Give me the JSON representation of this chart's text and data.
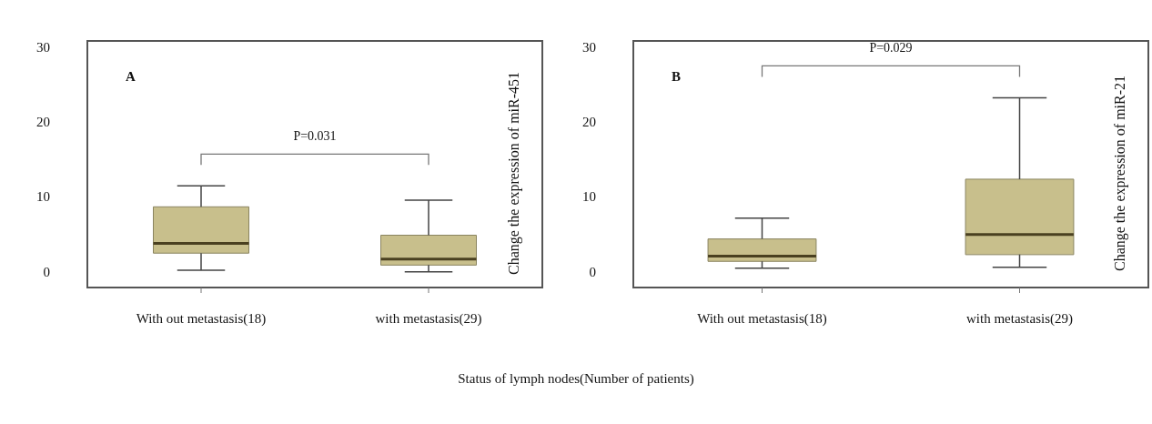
{
  "chart_data": [
    {
      "type": "box",
      "title": "A",
      "ylabel": "Change the expression of miR-451",
      "xlabel": "Status of lymph nodes(Number of patients)",
      "categories": [
        "With out metastasis(18)",
        "with metastasis(29)"
      ],
      "series": [
        {
          "color": "#c8bf8c",
          "boxes": [
            {
              "low": 0.3,
              "q1": 2.6,
              "median": 3.9,
              "q3": 8.8,
              "high": 11.6
            },
            {
              "low": 0.1,
              "q1": 1.0,
              "median": 1.8,
              "q3": 5.0,
              "high": 9.7
            }
          ]
        }
      ],
      "ylim": [
        -2,
        31
      ],
      "yticks": [
        0,
        10,
        20,
        30
      ],
      "grid": false,
      "legend": false,
      "annotations": [
        "P=0.031"
      ]
    },
    {
      "type": "box",
      "title": "B",
      "ylabel": "Change the expression of miR-21",
      "categories": [
        "With out metastasis(18)",
        "with metastasis(29)"
      ],
      "series": [
        {
          "color": "#c8bf8c",
          "boxes": [
            {
              "low": 0.6,
              "q1": 1.5,
              "median": 2.2,
              "q3": 4.5,
              "high": 7.3
            },
            {
              "low": 0.7,
              "q1": 2.4,
              "median": 5.1,
              "q3": 12.5,
              "high": 23.4
            }
          ]
        }
      ],
      "ylim": [
        -2,
        31
      ],
      "yticks": [
        0,
        10,
        20,
        30
      ],
      "grid": false,
      "legend": false,
      "annotations": [
        "P=0.029"
      ]
    }
  ]
}
